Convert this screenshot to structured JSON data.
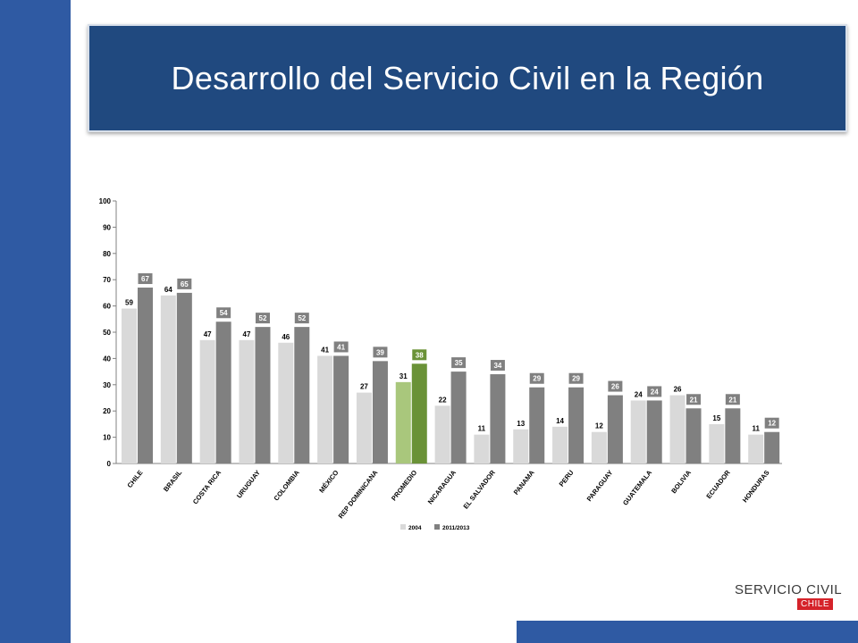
{
  "slide": {
    "title": "Desarrollo del Servicio Civil en la Región",
    "logo_text": "SERVICIO CIVIL",
    "logo_subtext": "CHILE"
  },
  "colors": {
    "band": "#2f5aa3",
    "banner": "#20497f",
    "series_2004": "#d9d9d9",
    "series_2011": "#808080",
    "highlight_2004": "#a9c77c",
    "highlight_2011": "#6a9237"
  },
  "chart_data": {
    "type": "bar",
    "title": "",
    "xlabel": "",
    "ylabel": "",
    "ylim": [
      0,
      100
    ],
    "yticks": [
      0,
      10,
      20,
      30,
      40,
      50,
      60,
      70,
      80,
      90,
      100
    ],
    "grid": false,
    "legend_position": "bottom",
    "highlight_category": "PROMEDIO",
    "categories": [
      "CHILE",
      "BRASIL",
      "COSTA RICA",
      "URUGUAY",
      "COLOMBIA",
      "MÉXICO",
      "REP DOMINICANA",
      "PROMEDIO",
      "NICARAGUA",
      "EL SALVADOR",
      "PANAMA",
      "PERU",
      "PARAGUAY",
      "GUATEMALA",
      "BOLIVIA",
      "ECUADOR",
      "HONDURAS"
    ],
    "series": [
      {
        "name": "2004",
        "values": [
          59,
          64,
          47,
          47,
          46,
          41,
          27,
          31,
          22,
          11,
          13,
          14,
          12,
          24,
          26,
          15,
          11
        ]
      },
      {
        "name": "2011/2013",
        "values": [
          67,
          65,
          54,
          52,
          52,
          41,
          39,
          38,
          35,
          34,
          29,
          29,
          26,
          24,
          21,
          21,
          12
        ]
      }
    ]
  }
}
